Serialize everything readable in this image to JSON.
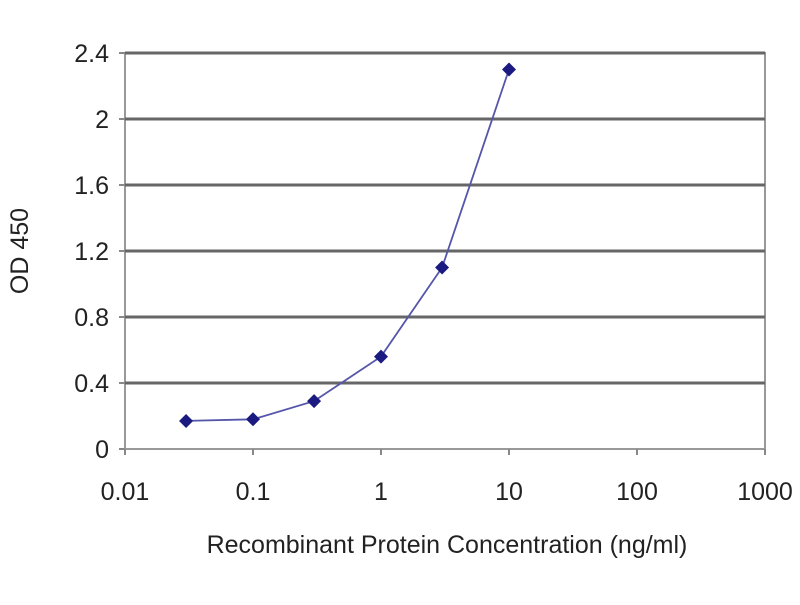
{
  "chart_data": {
    "type": "line",
    "title": "",
    "xlabel": "Recombinant Protein Concentration (ng/ml)",
    "ylabel": "OD 450",
    "x_scale": "log",
    "xlim": [
      0.01,
      1000
    ],
    "ylim": [
      0,
      2.4
    ],
    "x_ticks": [
      "0.01",
      "0.1",
      "1",
      "10",
      "100",
      "1000"
    ],
    "y_ticks": [
      "0",
      "0.4",
      "0.8",
      "1.2",
      "1.6",
      "2",
      "2.4"
    ],
    "grid": "horizontal",
    "series": [
      {
        "color": "#1a1a80",
        "marker": "diamond",
        "x": [
          0.03,
          0.1,
          0.3,
          1,
          3,
          10
        ],
        "y": [
          0.17,
          0.18,
          0.29,
          0.56,
          1.1,
          2.3
        ]
      }
    ]
  }
}
